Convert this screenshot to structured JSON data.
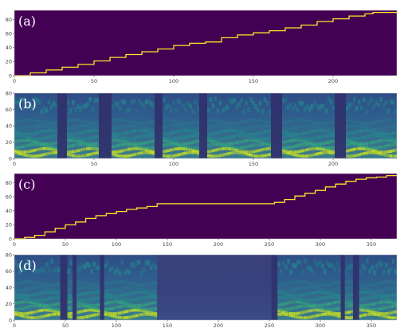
{
  "chart_data": [
    {
      "panel_label": "(a)",
      "type": "line",
      "title": "",
      "xlabel": "",
      "ylabel": "",
      "xlim": [
        0,
        240
      ],
      "ylim": [
        0,
        93
      ],
      "xticks": [
        0,
        50,
        100,
        150,
        200
      ],
      "yticks": [
        0,
        20,
        40,
        60,
        80
      ],
      "grid": false,
      "background_color": "#440154",
      "line_color": "#fde725",
      "series": [
        {
          "x": [
            0,
            10,
            20,
            30,
            40,
            50,
            60,
            70,
            80,
            90,
            100,
            110,
            120,
            130,
            140,
            150,
            160,
            170,
            180,
            190,
            200,
            210,
            220,
            225,
            240
          ],
          "y": [
            0,
            4,
            8,
            12,
            16,
            21,
            26,
            30,
            34,
            38,
            43,
            46,
            48,
            54,
            58,
            61,
            64,
            68,
            72,
            77,
            81,
            85,
            88,
            90,
            90
          ]
        }
      ]
    },
    {
      "panel_label": "(b)",
      "type": "heatmap",
      "title": "",
      "xlabel": "",
      "ylabel": "",
      "xlim": [
        0,
        240
      ],
      "ylim": [
        0,
        80
      ],
      "xticks": [
        0,
        50,
        100,
        150,
        200
      ],
      "yticks": [
        0,
        20,
        40,
        60,
        80
      ],
      "grid": false,
      "colormap": "viridis",
      "pause_intervals": [
        [
          27,
          33
        ],
        [
          53,
          61
        ],
        [
          88,
          93
        ],
        [
          116,
          121
        ],
        [
          161,
          168
        ],
        [
          201,
          208
        ]
      ]
    },
    {
      "panel_label": "(c)",
      "type": "line",
      "title": "",
      "xlabel": "",
      "ylabel": "",
      "xlim": [
        0,
        375
      ],
      "ylim": [
        0,
        93
      ],
      "xticks": [
        0,
        50,
        100,
        150,
        200,
        250,
        300,
        350
      ],
      "yticks": [
        0,
        20,
        40,
        60,
        80
      ],
      "grid": false,
      "background_color": "#440154",
      "line_color": "#fde725",
      "series": [
        {
          "x": [
            0,
            10,
            20,
            30,
            40,
            50,
            60,
            70,
            80,
            90,
            100,
            110,
            120,
            130,
            140,
            200,
            250,
            255,
            265,
            275,
            285,
            295,
            305,
            315,
            325,
            335,
            345,
            355,
            365,
            375
          ],
          "y": [
            0,
            2,
            5,
            10,
            15,
            20,
            24,
            29,
            33,
            36,
            39,
            42,
            44,
            46,
            50,
            50,
            50,
            52,
            56,
            61,
            65,
            69,
            74,
            78,
            82,
            85,
            87,
            88,
            90,
            90
          ]
        }
      ]
    },
    {
      "panel_label": "(d)",
      "type": "heatmap",
      "title": "",
      "xlabel": "",
      "ylabel": "",
      "xlim": [
        0,
        375
      ],
      "ylim": [
        0,
        80
      ],
      "xticks": [
        0,
        50,
        100,
        150,
        200,
        250,
        300,
        350
      ],
      "yticks": [
        0,
        20,
        40,
        60,
        80
      ],
      "grid": false,
      "colormap": "viridis",
      "silence_interval": [
        140,
        252
      ],
      "pause_intervals": [
        [
          45,
          52
        ],
        [
          57,
          61
        ],
        [
          84,
          88
        ],
        [
          252,
          258
        ],
        [
          320,
          324
        ],
        [
          332,
          338
        ]
      ]
    }
  ]
}
